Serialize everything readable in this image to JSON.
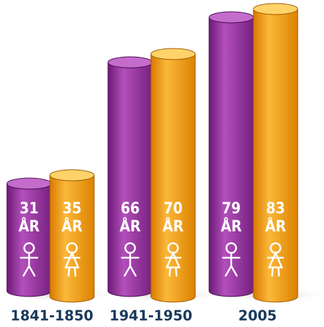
{
  "chart_data": {
    "type": "bar",
    "categories": [
      "1841-1850",
      "1941-1950",
      "2005"
    ],
    "unit": "ÅR",
    "series": [
      {
        "color": "#9b3aa3",
        "values": [
          31,
          66,
          79
        ]
      },
      {
        "color": "#f2a20f",
        "values": [
          35,
          70,
          83
        ]
      }
    ]
  }
}
